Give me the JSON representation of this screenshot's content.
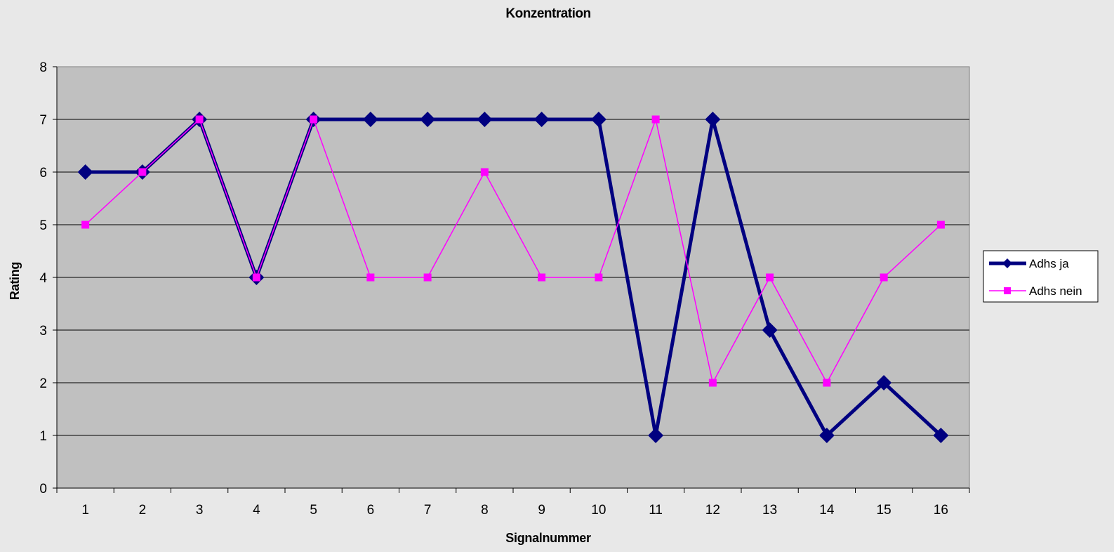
{
  "chart_data": {
    "type": "line",
    "title": "Konzentration",
    "xlabel": "Signalnummer",
    "ylabel": "Rating",
    "categories": [
      "1",
      "2",
      "3",
      "4",
      "5",
      "6",
      "7",
      "8",
      "9",
      "10",
      "11",
      "12",
      "13",
      "14",
      "15",
      "16"
    ],
    "ylim": [
      0,
      8
    ],
    "yticks": [
      "0",
      "1",
      "2",
      "3",
      "4",
      "5",
      "6",
      "7",
      "8"
    ],
    "grid": true,
    "legend_position": "right",
    "plot_background": "#c0c0c0",
    "series": [
      {
        "name": "Adhs ja",
        "color": "#000080",
        "marker": "diamond",
        "values": [
          6,
          6,
          7,
          4,
          7,
          7,
          7,
          7,
          7,
          7,
          1,
          7,
          3,
          1,
          2,
          1
        ]
      },
      {
        "name": "Adhs nein",
        "color": "#ff00ff",
        "marker": "square",
        "values": [
          5,
          6,
          7,
          4,
          7,
          4,
          4,
          6,
          4,
          4,
          7,
          2,
          4,
          2,
          4,
          5
        ]
      }
    ]
  }
}
